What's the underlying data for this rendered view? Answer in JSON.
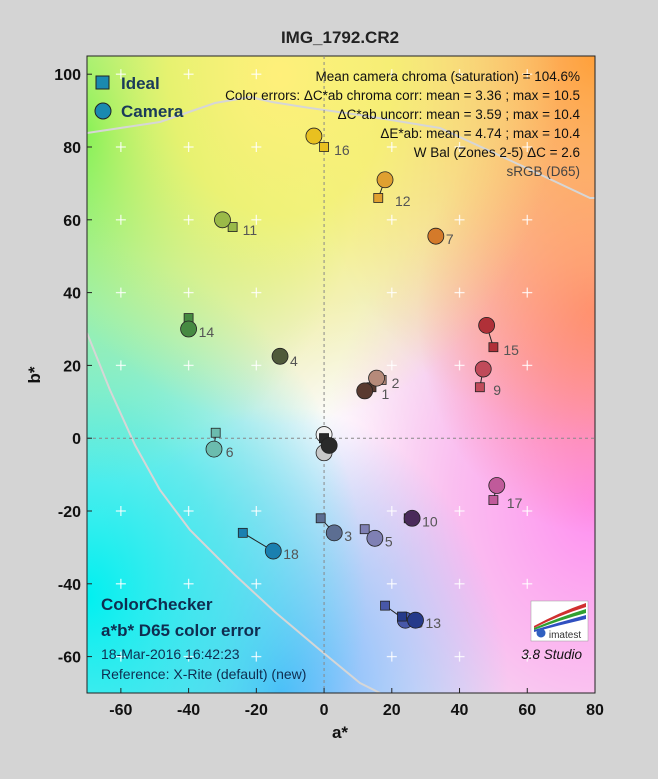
{
  "chart_data": {
    "type": "scatter",
    "title": "IMG_1792.CR2",
    "xlabel": "a*",
    "ylabel": "b*",
    "xlim": [
      -70,
      80
    ],
    "ylim": [
      -70,
      105
    ],
    "xticks": [
      -60,
      -40,
      -20,
      0,
      20,
      40,
      60,
      80
    ],
    "yticks": [
      -60,
      -40,
      -20,
      0,
      20,
      40,
      60,
      80,
      100
    ],
    "legend": {
      "position": "top-left",
      "ideal": "Ideal",
      "camera": "Camera"
    },
    "stats": [
      "Mean camera chroma (saturation) = 104.6%",
      "Color errors: ΔC*ab chroma corr:  mean = 3.36 ;  max = 10.5",
      "ΔC*ab uncorr:  mean = 3.59 ;  max = 10.4",
      "ΔE*ab:  mean = 4.74 ;  max = 10.4",
      "W Bal (Zones 2-5) ΔC = 2.6"
    ],
    "colorspace": "sRGB (D65)",
    "bottom_title1": "ColorChecker",
    "bottom_title2": "a*b* D65 color error",
    "date": "18-Mar-2016 16:42:23",
    "reference": "Reference: X-Rite (default) (new)",
    "version": "3.8  Studio",
    "logo": "imatest",
    "patches": [
      {
        "id": "1",
        "ideal": [
          14,
          14
        ],
        "camera": [
          12,
          13
        ],
        "color": "#5a3a30"
      },
      {
        "id": "2",
        "ideal": [
          17,
          16
        ],
        "camera": [
          15.5,
          16.5
        ],
        "color": "#b68a7a"
      },
      {
        "id": "3",
        "ideal": [
          -1,
          -22
        ],
        "camera": [
          3,
          -26
        ],
        "color": "#5c6e92"
      },
      {
        "id": "4",
        "ideal": [
          -13,
          22
        ],
        "camera": [
          -13,
          22.5
        ],
        "color": "#4f5a3a"
      },
      {
        "id": "5",
        "ideal": [
          12,
          -25
        ],
        "camera": [
          15,
          -27.5
        ],
        "color": "#7f80b4"
      },
      {
        "id": "6",
        "ideal": [
          -32,
          1.5
        ],
        "camera": [
          -32.5,
          -3
        ],
        "color": "#6bbcae"
      },
      {
        "id": "7",
        "ideal": [
          33,
          56
        ],
        "camera": [
          33,
          55.5
        ],
        "color": "#d47a2a"
      },
      {
        "id": "8",
        "ideal": [
          18,
          -46
        ],
        "camera": [
          24,
          -50
        ],
        "color": "#4858a8"
      },
      {
        "id": "9",
        "ideal": [
          46,
          14
        ],
        "camera": [
          47,
          19
        ],
        "color": "#c04a5a"
      },
      {
        "id": "10",
        "ideal": [
          25,
          -22
        ],
        "camera": [
          26,
          -22
        ],
        "color": "#4a2a5a"
      },
      {
        "id": "11",
        "ideal": [
          -27,
          58
        ],
        "camera": [
          -30,
          60
        ],
        "color": "#9aba48"
      },
      {
        "id": "12",
        "ideal": [
          16,
          66
        ],
        "camera": [
          18,
          71
        ],
        "color": "#e0a030"
      },
      {
        "id": "13",
        "ideal": [
          23,
          -49
        ],
        "camera": [
          27,
          -50
        ],
        "color": "#263a8a"
      },
      {
        "id": "14",
        "ideal": [
          -40,
          33
        ],
        "camera": [
          -40,
          30
        ],
        "color": "#468a42"
      },
      {
        "id": "15",
        "ideal": [
          50,
          25
        ],
        "camera": [
          48,
          31
        ],
        "color": "#b03038"
      },
      {
        "id": "16",
        "ideal": [
          0,
          80
        ],
        "camera": [
          -3,
          83
        ],
        "color": "#e8c020"
      },
      {
        "id": "17",
        "ideal": [
          50,
          -17
        ],
        "camera": [
          51,
          -13
        ],
        "color": "#c05a9a"
      },
      {
        "id": "18",
        "ideal": [
          -24,
          -26
        ],
        "camera": [
          -15,
          -31
        ],
        "color": "#1a80b0"
      },
      {
        "id": "N1",
        "ideal": [
          0,
          0
        ],
        "camera": [
          0,
          1
        ],
        "color": "#f2f2f2",
        "label": ""
      },
      {
        "id": "N2",
        "ideal": [
          0,
          0
        ],
        "camera": [
          0,
          -4
        ],
        "color": "#c8c8c8",
        "label": ""
      },
      {
        "id": "N3",
        "ideal": [
          0,
          0
        ],
        "camera": [
          1.5,
          -2
        ],
        "color": "#2a2a2a",
        "label": ""
      }
    ]
  }
}
